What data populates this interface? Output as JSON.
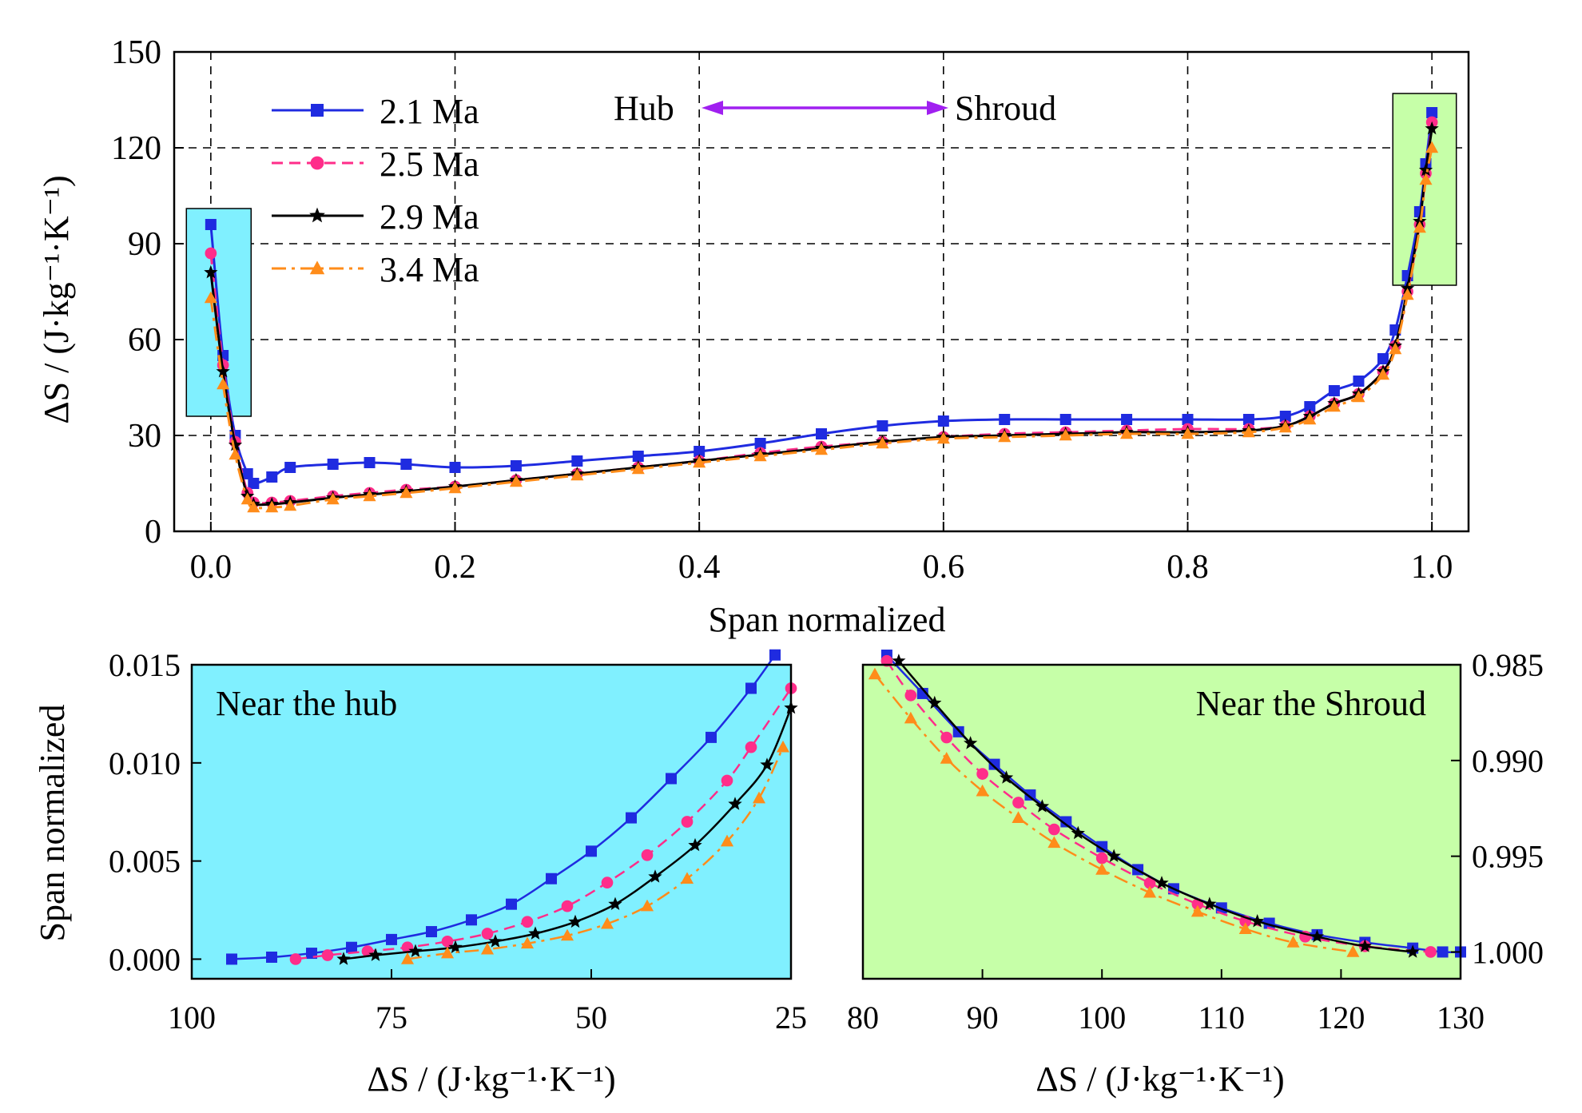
{
  "colors": {
    "series": [
      "#1f2be0",
      "#ff2d8a",
      "#000000",
      "#ff8c1a"
    ],
    "hub_fill": "#80f0ff",
    "shroud_fill": "#c6ffa8",
    "arrow": "#a020f0"
  },
  "chart_data": [
    {
      "type": "line",
      "name": "main",
      "xlabel": "Span normalized",
      "ylabel": "ΔS / (J·kg⁻¹·K⁻¹)",
      "xlim": [
        -0.03,
        1.03
      ],
      "ylim": [
        0,
        150
      ],
      "xticks": [
        "0.0",
        "0.2",
        "0.4",
        "0.6",
        "0.8",
        "1.0"
      ],
      "xtick_values": [
        0,
        0.2,
        0.4,
        0.6,
        0.8,
        1.0
      ],
      "yticks": [
        "0",
        "30",
        "60",
        "90",
        "120",
        "150"
      ],
      "ytick_values": [
        0,
        30,
        60,
        90,
        120,
        150
      ],
      "grid": true,
      "legend_position": "top-left",
      "annotation": {
        "left": "Hub",
        "right": "Shroud"
      },
      "highlight_regions": [
        {
          "name": "hub",
          "x": [
            -0.02,
            0.033
          ],
          "y": [
            36,
            101
          ]
        },
        {
          "name": "shroud",
          "x": [
            0.968,
            1.02
          ],
          "y": [
            77,
            137
          ]
        }
      ],
      "series": [
        {
          "name": "2.1 Ma",
          "marker": "square",
          "dash": "solid",
          "x": [
            0.0,
            0.01,
            0.02,
            0.03,
            0.035,
            0.05,
            0.065,
            0.1,
            0.13,
            0.16,
            0.2,
            0.25,
            0.3,
            0.35,
            0.4,
            0.45,
            0.5,
            0.55,
            0.6,
            0.65,
            0.7,
            0.75,
            0.8,
            0.85,
            0.88,
            0.9,
            0.92,
            0.94,
            0.96,
            0.97,
            0.98,
            0.99,
            0.995,
            1.0
          ],
          "y": [
            96,
            55,
            30,
            18,
            15,
            17,
            20,
            21,
            21.5,
            21,
            20,
            20.5,
            22,
            23.5,
            25,
            27.5,
            30.5,
            33,
            34.5,
            35,
            35,
            35,
            35,
            35,
            36,
            39,
            44,
            47,
            54,
            63,
            80,
            100,
            115,
            131
          ]
        },
        {
          "name": "2.5 Ma",
          "marker": "circle",
          "dash": "dashed",
          "x": [
            0.0,
            0.01,
            0.02,
            0.03,
            0.035,
            0.05,
            0.065,
            0.1,
            0.13,
            0.16,
            0.2,
            0.25,
            0.3,
            0.35,
            0.4,
            0.45,
            0.5,
            0.55,
            0.6,
            0.65,
            0.7,
            0.75,
            0.8,
            0.85,
            0.88,
            0.9,
            0.92,
            0.94,
            0.96,
            0.97,
            0.98,
            0.99,
            0.995,
            1.0
          ],
          "y": [
            87,
            52,
            28,
            12,
            9,
            9,
            9.5,
            11,
            12,
            13,
            14,
            16,
            18,
            20,
            22,
            24.5,
            26.5,
            28,
            29.5,
            30.5,
            31,
            31.5,
            32,
            32,
            33,
            36,
            40,
            43,
            50,
            58,
            75,
            96,
            112,
            128
          ]
        },
        {
          "name": "2.9 Ma",
          "marker": "star",
          "dash": "solid",
          "x": [
            0.0,
            0.01,
            0.02,
            0.03,
            0.035,
            0.05,
            0.065,
            0.1,
            0.13,
            0.16,
            0.2,
            0.25,
            0.3,
            0.35,
            0.4,
            0.45,
            0.5,
            0.55,
            0.6,
            0.65,
            0.7,
            0.75,
            0.8,
            0.85,
            0.88,
            0.9,
            0.92,
            0.94,
            0.96,
            0.97,
            0.98,
            0.99,
            0.995,
            1.0
          ],
          "y": [
            81,
            50,
            27,
            11,
            8.5,
            8.5,
            9,
            10.5,
            11.5,
            12.5,
            14,
            16,
            18,
            20,
            22,
            24,
            26,
            28,
            29.5,
            30,
            30.5,
            31,
            31,
            31.5,
            33,
            36,
            40,
            43,
            50,
            58,
            76,
            97,
            113,
            126
          ]
        },
        {
          "name": "3.4 Ma",
          "marker": "triangle",
          "dash": "dashdot",
          "x": [
            0.0,
            0.01,
            0.02,
            0.03,
            0.035,
            0.05,
            0.065,
            0.1,
            0.13,
            0.16,
            0.2,
            0.25,
            0.3,
            0.35,
            0.4,
            0.45,
            0.5,
            0.55,
            0.6,
            0.65,
            0.7,
            0.75,
            0.8,
            0.85,
            0.88,
            0.9,
            0.92,
            0.94,
            0.96,
            0.97,
            0.98,
            0.99,
            0.995,
            1.0
          ],
          "y": [
            73,
            46,
            24,
            10,
            7.5,
            7.5,
            8,
            10,
            11,
            12,
            13.5,
            15.5,
            17.5,
            19.5,
            21.5,
            23.5,
            25.5,
            27.5,
            29,
            29.5,
            30,
            30.5,
            30.5,
            31,
            32.5,
            35,
            39,
            42,
            49,
            57,
            74,
            95,
            110,
            120
          ]
        }
      ]
    },
    {
      "type": "line",
      "name": "hub-inset",
      "title": "Near the hub",
      "xlabel": "ΔS / (J·kg⁻¹·K⁻¹)",
      "ylabel": "Span normalized",
      "xlim": [
        100,
        25
      ],
      "ylim": [
        -0.001,
        0.015
      ],
      "xticks": [
        "100",
        "75",
        "50",
        "25"
      ],
      "xtick_values": [
        100,
        75,
        50,
        25
      ],
      "yticks": [
        "0.000",
        "0.005",
        "0.010",
        "0.015"
      ],
      "ytick_values": [
        0,
        0.005,
        0.01,
        0.015
      ],
      "series": [
        {
          "name": "2.1 Ma",
          "x": [
            95,
            90,
            85,
            80,
            75,
            70,
            65,
            60,
            55,
            50,
            45,
            40,
            35,
            30,
            27
          ],
          "y": [
            0.0,
            0.0001,
            0.0003,
            0.0006,
            0.001,
            0.0014,
            0.002,
            0.0028,
            0.0041,
            0.0055,
            0.0072,
            0.0092,
            0.0113,
            0.0138,
            0.0155
          ]
        },
        {
          "name": "2.5 Ma",
          "x": [
            87,
            83,
            78,
            73,
            68,
            63,
            58,
            53,
            48,
            43,
            38,
            33,
            30,
            25
          ],
          "y": [
            0.0,
            0.0002,
            0.0004,
            0.0006,
            0.0009,
            0.0013,
            0.0019,
            0.0027,
            0.0039,
            0.0053,
            0.007,
            0.0091,
            0.0108,
            0.0138
          ]
        },
        {
          "name": "2.9 Ma",
          "x": [
            81,
            77,
            72,
            67,
            62,
            57,
            52,
            47,
            42,
            37,
            32,
            28,
            25
          ],
          "y": [
            0.0,
            0.0002,
            0.0004,
            0.0006,
            0.0009,
            0.0013,
            0.0019,
            0.0028,
            0.0042,
            0.0058,
            0.0079,
            0.0099,
            0.0128
          ]
        },
        {
          "name": "3.4 Ma",
          "x": [
            73,
            68,
            63,
            58,
            53,
            48,
            43,
            38,
            33,
            29,
            26
          ],
          "y": [
            0.0,
            0.0003,
            0.0005,
            0.0008,
            0.0012,
            0.0018,
            0.0027,
            0.0041,
            0.006,
            0.0082,
            0.0108
          ]
        }
      ]
    },
    {
      "type": "line",
      "name": "shroud-inset",
      "title": "Near the Shroud",
      "xlabel": "ΔS / (J·kg⁻¹·K⁻¹)",
      "ylabel": "",
      "xlim": [
        80,
        130
      ],
      "ylim": [
        1.0014,
        0.985
      ],
      "xticks": [
        "80",
        "90",
        "100",
        "110",
        "120",
        "130"
      ],
      "xtick_values": [
        80,
        90,
        100,
        110,
        120,
        130
      ],
      "yticks": [
        "0.985",
        "0.990",
        "0.995",
        "1.000"
      ],
      "ytick_values": [
        0.985,
        0.99,
        0.995,
        1.0
      ],
      "series": [
        {
          "name": "2.1 Ma",
          "x": [
            82,
            85,
            88,
            91,
            94,
            97,
            100,
            103,
            106,
            110,
            114,
            118,
            122,
            126,
            128.5,
            130
          ],
          "y": [
            0.9845,
            0.9865,
            0.9885,
            0.9902,
            0.9918,
            0.9932,
            0.9945,
            0.9957,
            0.9967,
            0.9977,
            0.9985,
            0.9991,
            0.9995,
            0.9998,
            1.0,
            1.0
          ]
        },
        {
          "name": "2.5 Ma",
          "x": [
            82,
            84,
            87,
            90,
            93,
            96,
            100,
            104,
            108,
            112,
            117,
            122,
            127.5
          ],
          "y": [
            0.9848,
            0.9866,
            0.9888,
            0.9907,
            0.9922,
            0.9936,
            0.9951,
            0.9964,
            0.9975,
            0.9984,
            0.9992,
            0.9997,
            1.0
          ]
        },
        {
          "name": "2.9 Ma",
          "x": [
            83,
            86,
            89,
            92,
            95,
            98,
            101,
            105,
            109,
            113,
            118,
            122,
            126
          ],
          "y": [
            0.9848,
            0.987,
            0.9891,
            0.9909,
            0.9924,
            0.9938,
            0.995,
            0.9964,
            0.9975,
            0.9984,
            0.9992,
            0.9997,
            1.0
          ]
        },
        {
          "name": "3.4 Ma",
          "x": [
            81,
            84,
            87,
            90,
            93,
            96,
            100,
            104,
            108,
            112,
            116,
            121
          ],
          "y": [
            0.9855,
            0.9878,
            0.9899,
            0.9916,
            0.993,
            0.9943,
            0.9957,
            0.9969,
            0.9979,
            0.9988,
            0.9995,
            1.0
          ]
        }
      ]
    }
  ]
}
